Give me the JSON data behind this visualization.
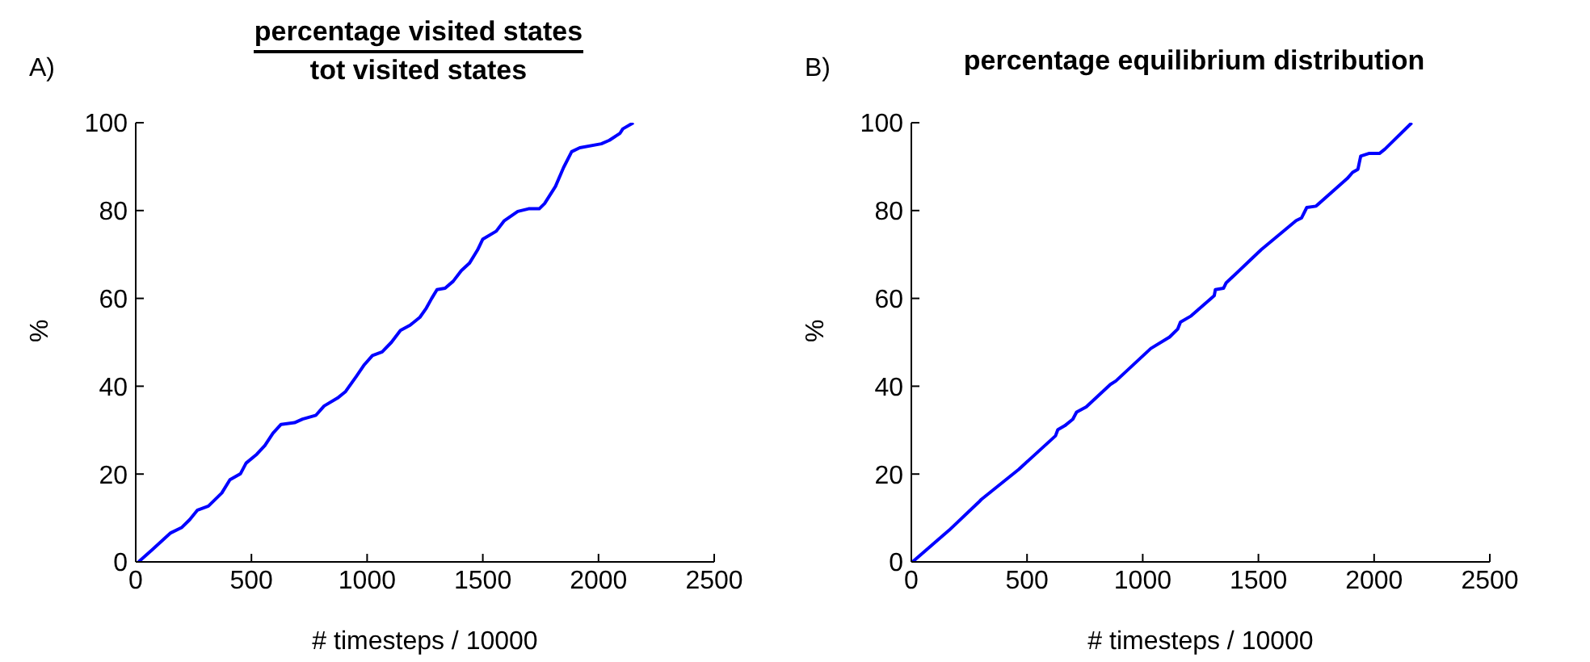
{
  "chart_data": [
    {
      "type": "line",
      "title": "percentage visited states",
      "subtitle": "tot visited states",
      "xlabel": "# timesteps / 10000",
      "ylabel": "%",
      "annotations": [
        "A)"
      ],
      "xlim": [
        0,
        2500
      ],
      "xticks": [
        0,
        500,
        1000,
        1500,
        2000,
        2500
      ],
      "ylim": [
        0,
        100
      ],
      "yticks": [
        0,
        20,
        40,
        60,
        80,
        100
      ],
      "grid": false,
      "legend": false,
      "marker": "none",
      "line_style": "solid",
      "series": [
        {
          "color": "#0000ff",
          "x": [
            12,
            70,
            151,
            198,
            233,
            267,
            314,
            372,
            407,
            453,
            477,
            523,
            558,
            593,
            628,
            686,
            721,
            779,
            814,
            872,
            907,
            953,
            988,
            1023,
            1065,
            1105,
            1144,
            1186,
            1228,
            1256,
            1279,
            1302,
            1337,
            1372,
            1407,
            1442,
            1477,
            1500,
            1558,
            1593,
            1651,
            1698,
            1744,
            1767,
            1814,
            1849,
            1884,
            1919,
            2012,
            2047,
            2093,
            2105,
            2151
          ],
          "values": [
            0,
            2.7,
            6.6,
            7.8,
            9.6,
            11.8,
            12.7,
            15.7,
            18.7,
            20.1,
            22.5,
            24.5,
            26.5,
            29.3,
            31.3,
            31.7,
            32.5,
            33.4,
            35.5,
            37.3,
            38.8,
            42.2,
            44.9,
            47,
            47.8,
            50,
            52.7,
            53.9,
            55.7,
            57.8,
            60,
            62,
            62.3,
            63.9,
            66.3,
            68,
            71,
            73.5,
            75.3,
            77.7,
            79.8,
            80.4,
            80.4,
            81.6,
            85.5,
            89.8,
            93.4,
            94.3,
            95.2,
            96,
            97.6,
            98.6,
            100
          ]
        }
      ]
    },
    {
      "type": "line",
      "title": "percentage equilibrium distribution",
      "xlabel": "# timesteps / 10000",
      "ylabel": "%",
      "annotations": [
        "B)"
      ],
      "xlim": [
        0,
        2500
      ],
      "xticks": [
        0,
        500,
        1000,
        1500,
        2000,
        2500
      ],
      "ylim": [
        0,
        100
      ],
      "yticks": [
        0,
        20,
        40,
        60,
        80,
        100
      ],
      "grid": false,
      "legend": false,
      "marker": "none",
      "line_style": "solid",
      "series": [
        {
          "color": "#0000ff",
          "x": [
            5,
            163,
            291,
            302,
            465,
            623,
            633,
            663,
            698,
            714,
            756,
            860,
            884,
            1035,
            1116,
            1151,
            1163,
            1209,
            1309,
            1314,
            1349,
            1360,
            1512,
            1663,
            1686,
            1709,
            1749,
            1884,
            1907,
            1930,
            1942,
            1977,
            2023,
            2047,
            2163
          ],
          "values": [
            0,
            7.2,
            13.6,
            14.2,
            21.1,
            28.7,
            30.1,
            31,
            32.5,
            34.1,
            35.3,
            40.4,
            41.2,
            48.6,
            51.2,
            53,
            54.6,
            56,
            60.6,
            62,
            62.3,
            63.5,
            71.1,
            77.7,
            78.3,
            80.7,
            81,
            87.3,
            88.7,
            89.4,
            92.4,
            93,
            93,
            94,
            100
          ]
        }
      ]
    }
  ]
}
